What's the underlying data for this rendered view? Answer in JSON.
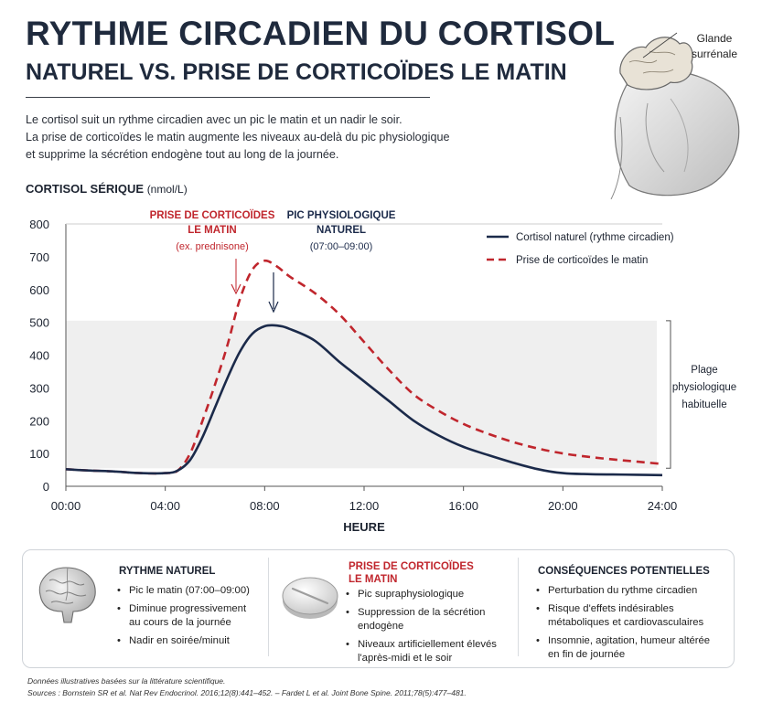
{
  "header": {
    "title": "RYTHME CIRCADIEN DU CORTISOL",
    "subtitle": "NATUREL VS. PRISE DE CORTICOÏDES LE MATIN",
    "intro": [
      "Le cortisol suit un rythme circadien avec un pic le matin et un nadir le soir.",
      "La prise de corticoïdes le matin augmente les niveaux au-delà du pic physiologique",
      "et supprime la sécrétion endogène tout au long de la journée."
    ]
  },
  "gland": {
    "label_line1": "Glande",
    "label_line2": "surrénale",
    "icon": "adrenal-gland-icon"
  },
  "chart_data": {
    "type": "line",
    "ylabel": "CORTISOL SÉRIQUE",
    "yunit": "(nmol/L)",
    "xlabel": "HEURE",
    "ylim": [
      0,
      800
    ],
    "xlim": [
      0,
      24
    ],
    "yticks": [
      0,
      100,
      200,
      300,
      400,
      500,
      600,
      700,
      800
    ],
    "xticks": [
      "00:00",
      "04:00",
      "08:00",
      "12:00",
      "16:00",
      "20:00",
      "24:00"
    ],
    "physiological_range": {
      "min": 55,
      "max": 505,
      "label": [
        "Plage",
        "physiologique",
        "habituelle"
      ]
    },
    "series": [
      {
        "name": "Cortisol naturel (rythme circadien)",
        "color": "#1b2a4a",
        "style": "solid",
        "points": [
          [
            0,
            52
          ],
          [
            1,
            48
          ],
          [
            2,
            45
          ],
          [
            3,
            40
          ],
          [
            4,
            40
          ],
          [
            4.5,
            48
          ],
          [
            5,
            80
          ],
          [
            5.5,
            150
          ],
          [
            6,
            240
          ],
          [
            6.5,
            330
          ],
          [
            7,
            410
          ],
          [
            7.5,
            465
          ],
          [
            8,
            488
          ],
          [
            8.5,
            490
          ],
          [
            9,
            480
          ],
          [
            10,
            445
          ],
          [
            11,
            380
          ],
          [
            12,
            320
          ],
          [
            13,
            260
          ],
          [
            14,
            200
          ],
          [
            15,
            155
          ],
          [
            16,
            120
          ],
          [
            17,
            95
          ],
          [
            18,
            72
          ],
          [
            19,
            52
          ],
          [
            20,
            40
          ],
          [
            21,
            37
          ],
          [
            22,
            36
          ],
          [
            23,
            35
          ],
          [
            24,
            34
          ]
        ]
      },
      {
        "name": "Prise de corticoïdes le matin",
        "color": "#c0262d",
        "style": "dashed",
        "points": [
          [
            0,
            52
          ],
          [
            1,
            48
          ],
          [
            2,
            45
          ],
          [
            3,
            40
          ],
          [
            4,
            40
          ],
          [
            4.5,
            48
          ],
          [
            5,
            100
          ],
          [
            5.5,
            200
          ],
          [
            6,
            310
          ],
          [
            6.5,
            430
          ],
          [
            7,
            570
          ],
          [
            7.5,
            660
          ],
          [
            8,
            688
          ],
          [
            8.5,
            670
          ],
          [
            9,
            640
          ],
          [
            10,
            590
          ],
          [
            11,
            525
          ],
          [
            12,
            440
          ],
          [
            13,
            355
          ],
          [
            14,
            280
          ],
          [
            15,
            230
          ],
          [
            16,
            190
          ],
          [
            17,
            160
          ],
          [
            18,
            135
          ],
          [
            19,
            115
          ],
          [
            20,
            100
          ],
          [
            21,
            90
          ],
          [
            22,
            82
          ],
          [
            23,
            75
          ],
          [
            24,
            68
          ]
        ]
      }
    ],
    "annotations": [
      {
        "title": [
          "PRISE DE CORTICOÏDES",
          "LE MATIN"
        ],
        "sub": "(ex. prednisone)",
        "color": "#c0262d"
      },
      {
        "title": [
          "PIC PHYSIOLOGIQUE",
          "NATUREL"
        ],
        "sub": "(07:00–09:00)",
        "color": "#1b2a4a"
      }
    ],
    "legend_position": "top-right",
    "grid": false
  },
  "panels": [
    {
      "title": "RYTHME NATUREL",
      "color": "#1c2330",
      "icon": "brain-icon",
      "items": [
        "Pic le matin (07:00–09:00)",
        "Diminue progressivement au cours de la journée",
        "Nadir en soirée/minuit"
      ]
    },
    {
      "title": "PRISE DE CORTICOÏDES LE MATIN",
      "title_line1": "PRISE DE CORTICOÏDES",
      "title_line2": "LE MATIN",
      "color": "#c0262d",
      "icon": "pill-icon",
      "items": [
        "Pic supraphysiologique",
        "Suppression de la sécrétion endogène",
        "Niveaux artificiellement élevés l'après-midi et le soir"
      ]
    },
    {
      "title": "CONSÉQUENCES POTENTIELLES",
      "color": "#1c2330",
      "items": [
        "Perturbation du rythme circadien",
        "Risque d'effets indésirables métaboliques et cardiovasculaires",
        "Insomnie, agitation, humeur altérée en fin de journée"
      ]
    }
  ],
  "footer": {
    "note": "Données illustratives basées sur la littérature scientifique.",
    "sources": "Sources : Bornstein SR et al. Nat Rev Endocrinol. 2016;12(8):441–452.  –  Fardet L et al. Joint Bone Spine. 2011;78(5):477–481."
  }
}
